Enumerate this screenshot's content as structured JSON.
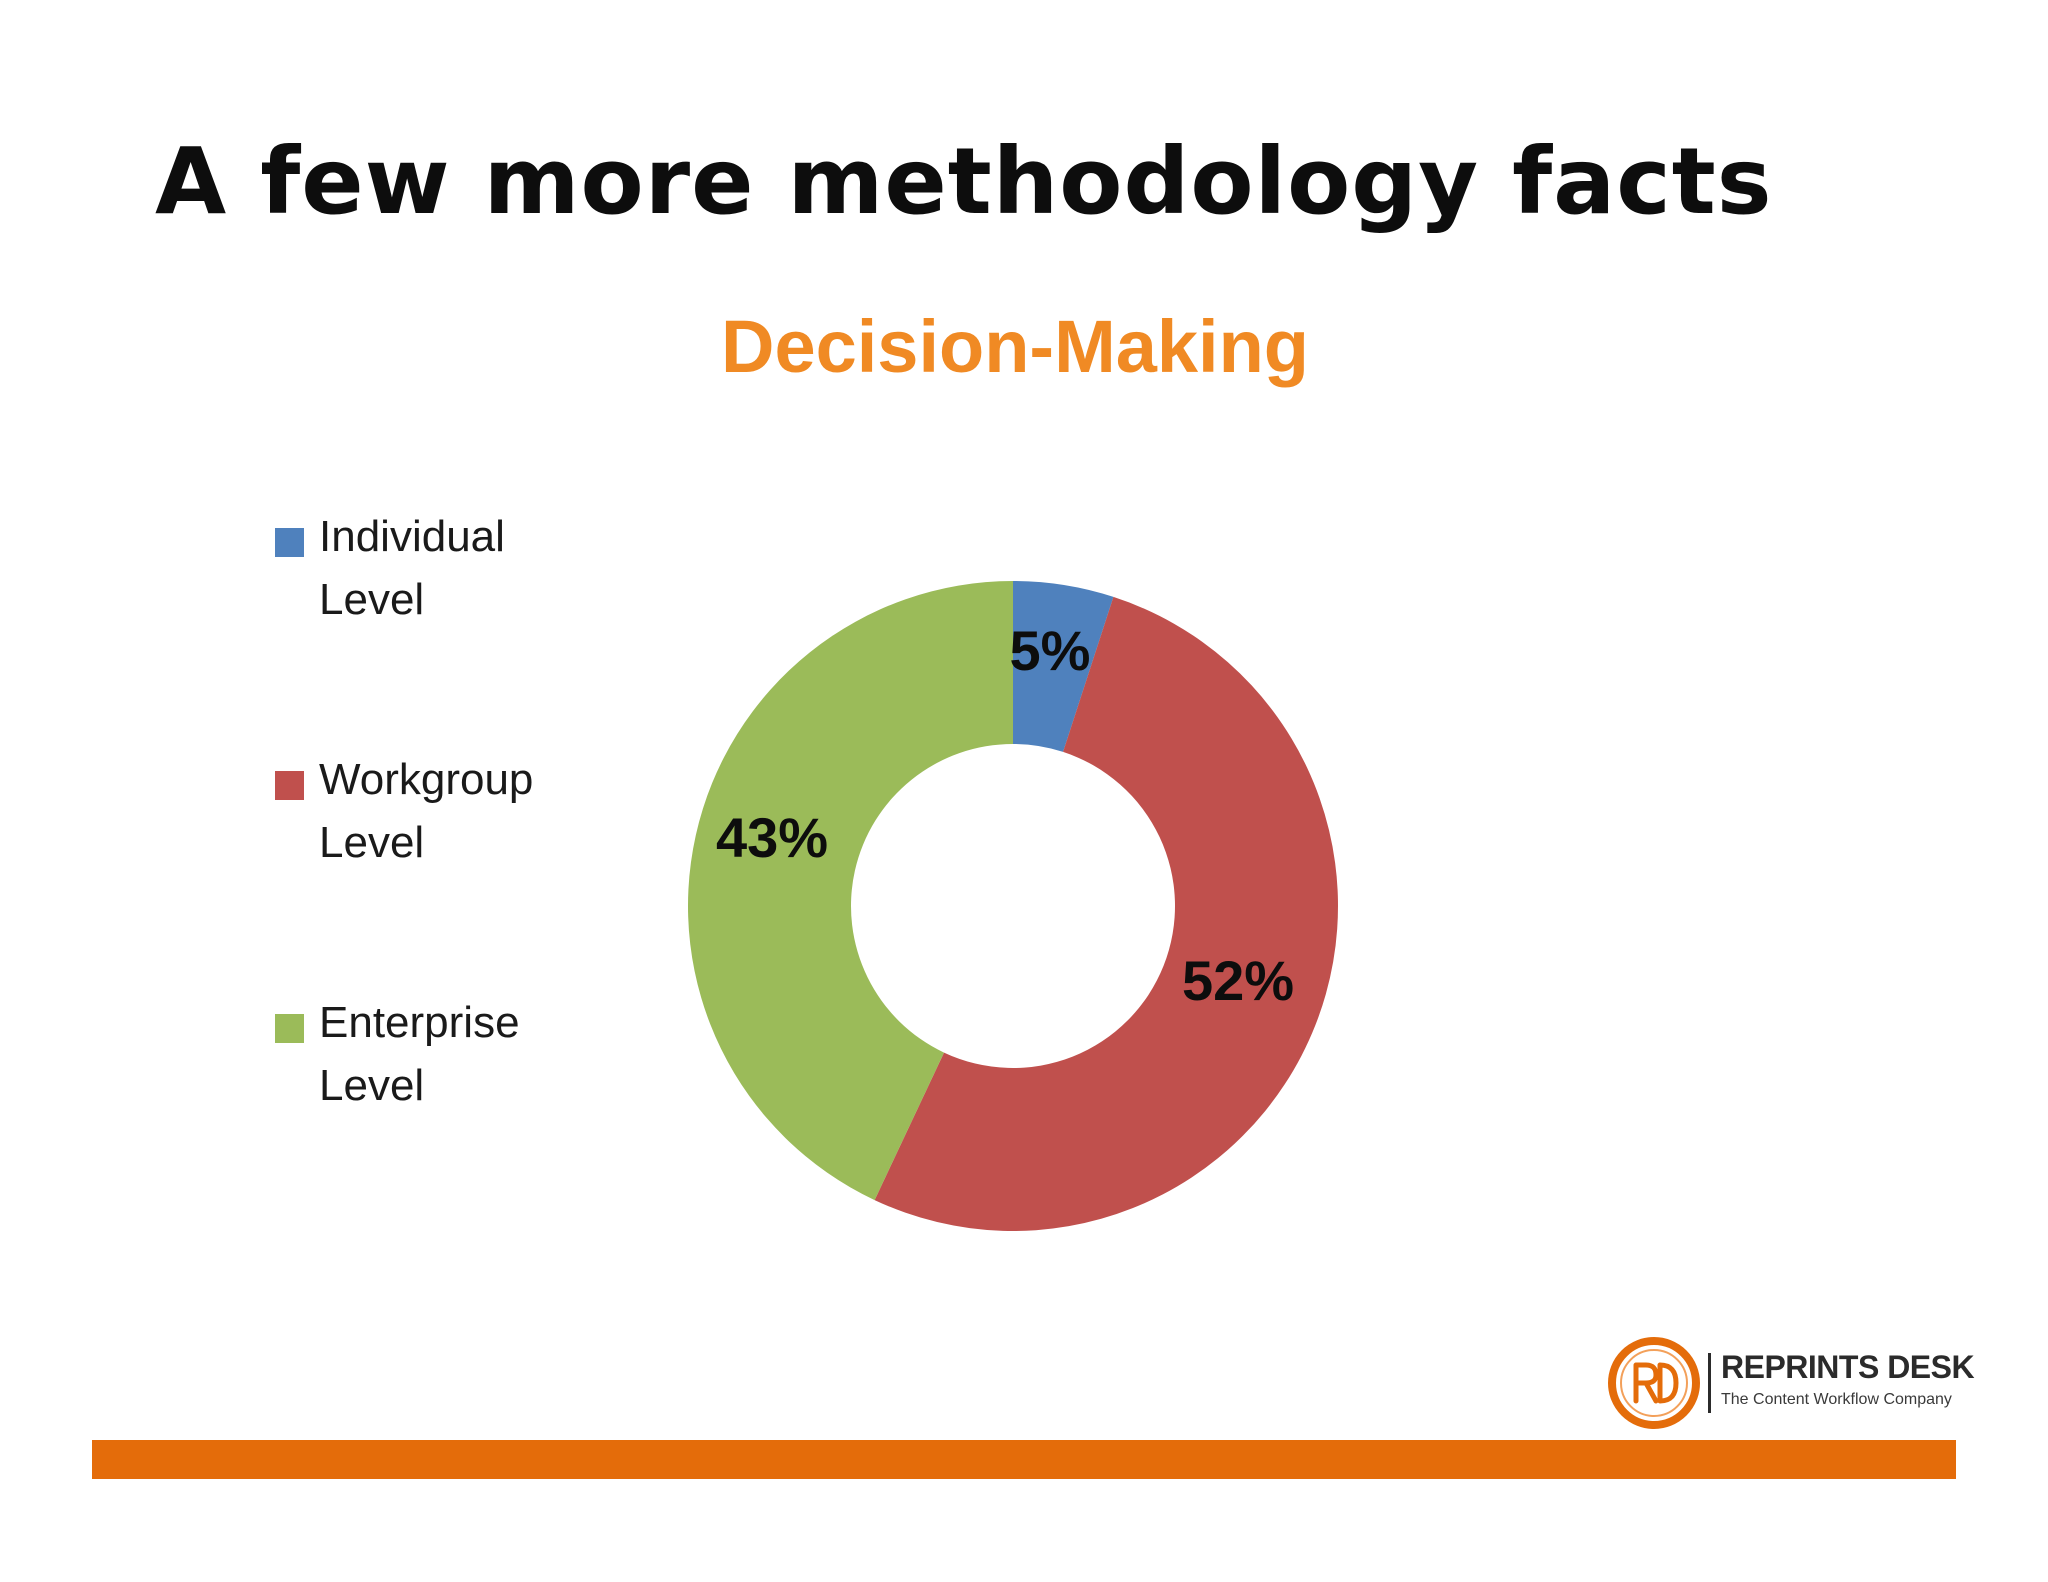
{
  "slide": {
    "title": "A few more methodology facts"
  },
  "colors": {
    "accent_orange": "#e46c0a",
    "title_orange": "#f08a24",
    "individual": "#4f81bd",
    "workgroup": "#c0504d",
    "enterprise": "#9bbb59"
  },
  "chart_data": {
    "type": "pie",
    "variant": "donut",
    "title": "Decision-Making",
    "legend_position": "left",
    "categories": [
      "Individual Level",
      "Workgroup Level",
      "Enterprise Level"
    ],
    "values": [
      5,
      52,
      43
    ],
    "labels": [
      "5%",
      "52%",
      "43%"
    ],
    "colors": [
      "#4f81bd",
      "#c0504d",
      "#9bbb59"
    ]
  },
  "legend": {
    "items": [
      {
        "line1": "Individual",
        "line2": "Level"
      },
      {
        "line1": "Workgroup",
        "line2": "Level"
      },
      {
        "line1": "Enterprise",
        "line2": "Level"
      }
    ]
  },
  "logo": {
    "brand": "REPRINTS DESK",
    "tagline": "The Content Workflow Company",
    "icon": "rd-monogram-icon"
  }
}
